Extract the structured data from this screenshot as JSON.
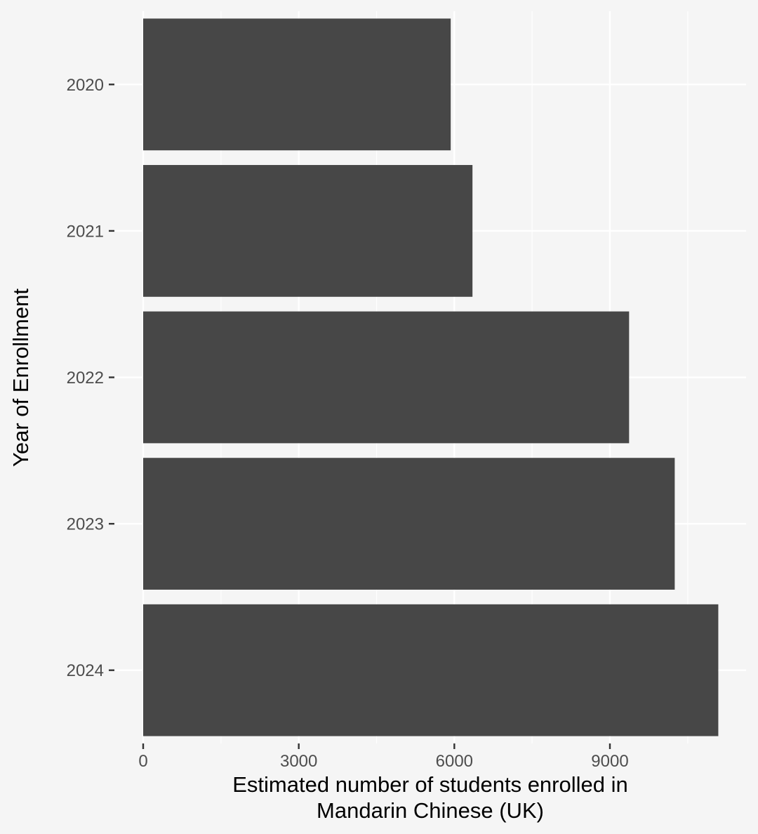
{
  "chart_data": {
    "type": "bar",
    "orientation": "horizontal",
    "categories": [
      "2020",
      "2021",
      "2022",
      "2023",
      "2024"
    ],
    "values": [
      5930,
      6350,
      9370,
      10250,
      11090
    ],
    "xlabel_lines": [
      "Estimated number of students enrolled in",
      "Mandarin Chinese (UK)"
    ],
    "ylabel": "Year of Enrollment",
    "xlim": [
      0,
      11500
    ],
    "x_ticks": [
      0,
      3000,
      6000,
      9000
    ],
    "x_tick_labels": [
      "0",
      "3000",
      "6000",
      "9000"
    ],
    "grid": true,
    "colors": {
      "bar": "#474747",
      "background": "#f5f5f5",
      "grid": "#ffffff",
      "tick_text": "#4d4d4d"
    }
  }
}
